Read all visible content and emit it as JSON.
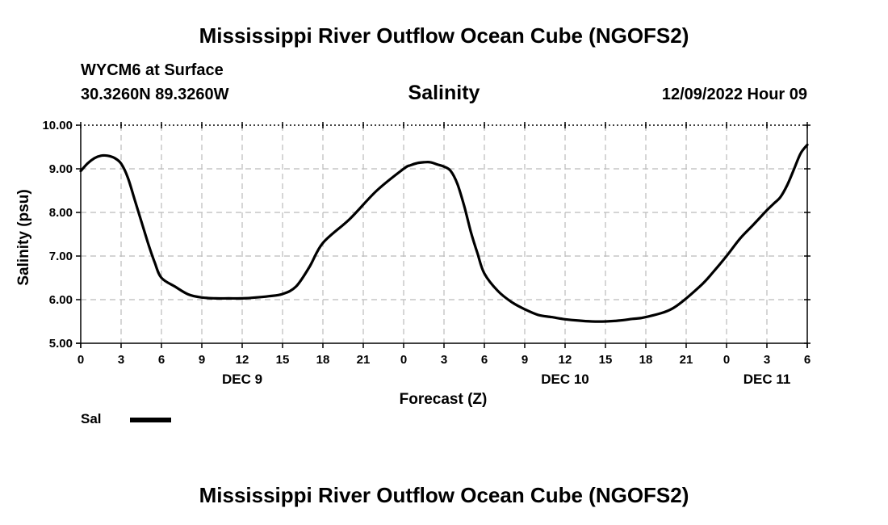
{
  "page": {
    "title_top": "Mississippi River Outflow Ocean Cube (NGOFS2)",
    "title_bottom": "Mississippi River Outflow Ocean Cube (NGOFS2)",
    "station_line": "WYCM6 at Surface",
    "coords": "30.3260N  89.3260W",
    "datetime": "12/09/2022 Hour 09"
  },
  "legend": {
    "label": "Sal"
  },
  "chart_data": {
    "type": "line",
    "title": "Salinity",
    "xlabel": "Forecast (Z)",
    "ylabel": "Salinity (psu)",
    "xlim": [
      0,
      54
    ],
    "ylim": [
      5.0,
      10.0
    ],
    "x_ticks": [
      0,
      3,
      6,
      9,
      12,
      15,
      18,
      21,
      24,
      27,
      30,
      33,
      36,
      39,
      42,
      45,
      48,
      51,
      54
    ],
    "x_tick_labels": [
      "0",
      "3",
      "6",
      "9",
      "12",
      "15",
      "18",
      "21",
      "0",
      "3",
      "6",
      "9",
      "12",
      "15",
      "18",
      "21",
      "0",
      "3",
      "6"
    ],
    "day_labels": [
      {
        "x": 12,
        "label": "DEC 9"
      },
      {
        "x": 36,
        "label": "DEC 10"
      },
      {
        "x": 51,
        "label": "DEC 11"
      }
    ],
    "y_ticks": [
      5.0,
      6.0,
      7.0,
      8.0,
      9.0,
      10.0
    ],
    "y_tick_labels": [
      "5.00",
      "6.00",
      "7.00",
      "8.00",
      "9.00",
      "10.00"
    ],
    "grid": true,
    "series": [
      {
        "name": "Sal",
        "x": [
          0,
          0.5,
          1,
          1.5,
          2,
          2.5,
          3,
          3.5,
          4,
          4.5,
          5,
          5.5,
          6,
          7,
          8,
          9,
          10,
          11,
          12,
          13,
          14,
          15,
          16,
          17,
          18,
          20,
          22,
          24,
          24.5,
          25,
          25.5,
          26,
          26.5,
          27,
          27.5,
          28,
          28.5,
          29,
          29.5,
          30,
          31,
          32,
          33,
          34,
          35,
          36,
          37,
          38,
          39,
          40,
          41,
          42,
          44,
          46,
          47,
          48,
          49,
          50,
          51,
          51.5,
          52,
          52.5,
          53,
          53.5,
          54
        ],
        "values": [
          8.95,
          9.12,
          9.24,
          9.3,
          9.3,
          9.25,
          9.12,
          8.8,
          8.3,
          7.8,
          7.3,
          6.85,
          6.5,
          6.3,
          6.12,
          6.05,
          6.03,
          6.03,
          6.03,
          6.05,
          6.08,
          6.13,
          6.3,
          6.75,
          7.3,
          7.85,
          8.5,
          9.0,
          9.08,
          9.13,
          9.15,
          9.15,
          9.1,
          9.05,
          8.95,
          8.65,
          8.15,
          7.55,
          7.05,
          6.6,
          6.2,
          5.95,
          5.78,
          5.65,
          5.6,
          5.55,
          5.52,
          5.5,
          5.5,
          5.52,
          5.56,
          5.6,
          5.8,
          6.3,
          6.63,
          7.0,
          7.4,
          7.72,
          8.05,
          8.2,
          8.35,
          8.62,
          8.98,
          9.35,
          9.55
        ]
      }
    ]
  }
}
